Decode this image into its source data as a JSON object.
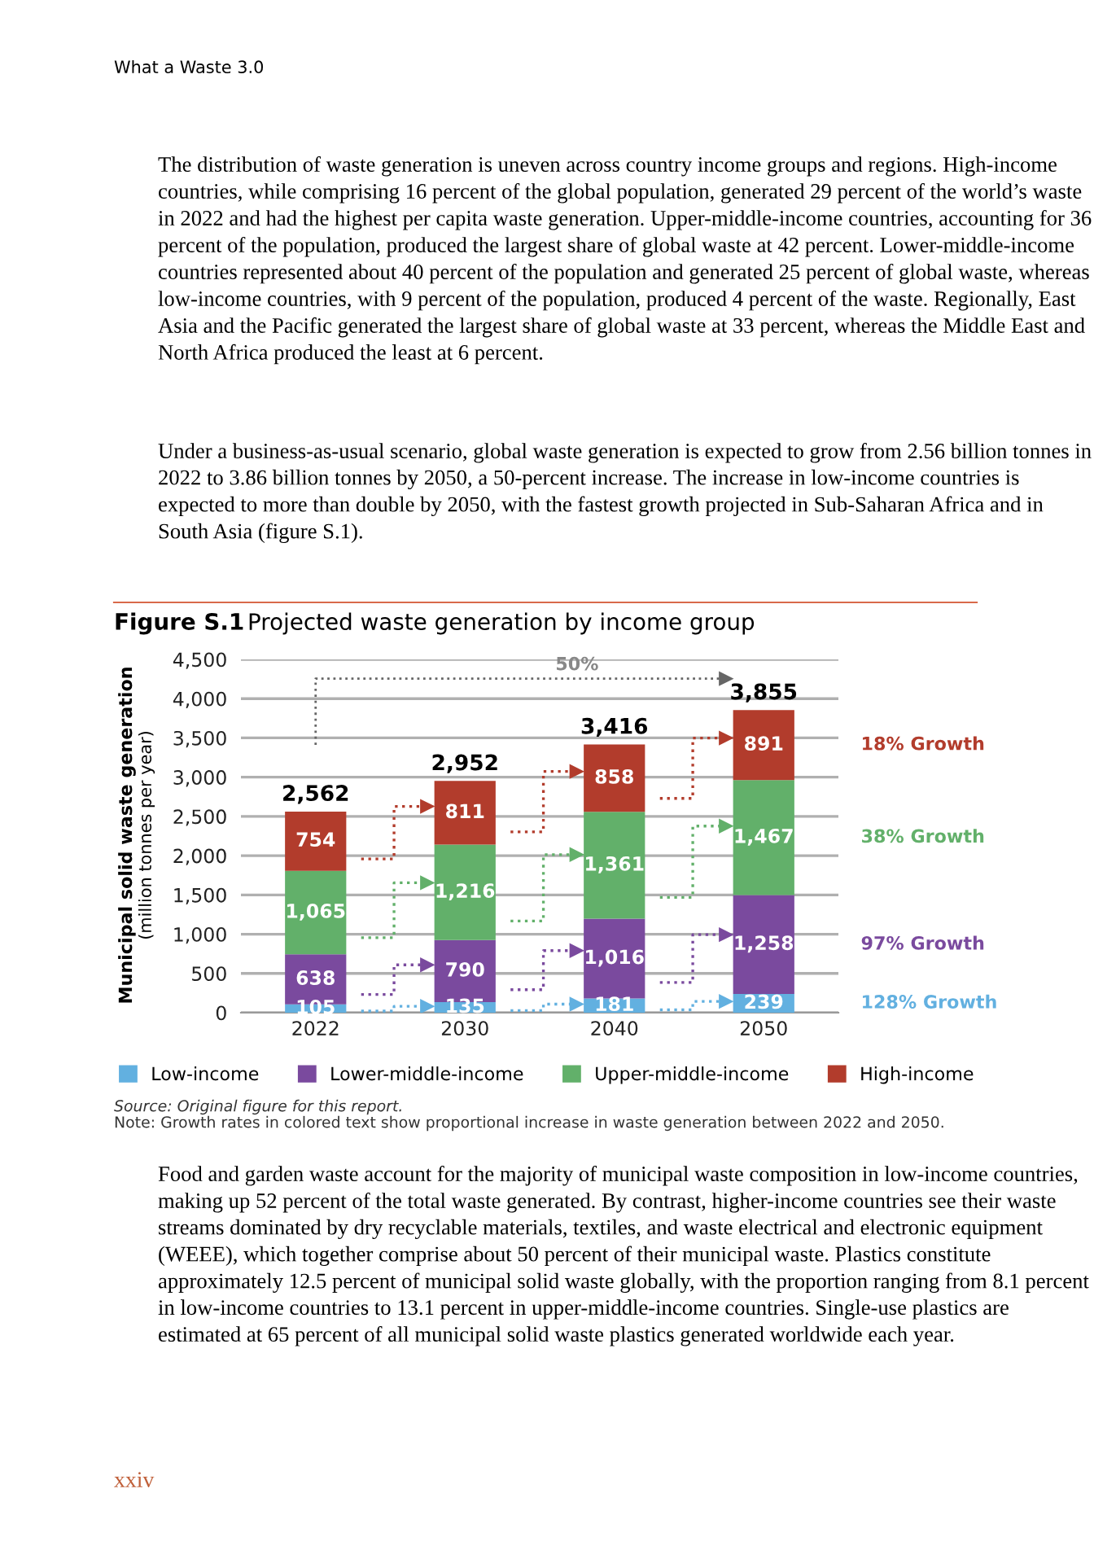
{
  "chart_data": {
    "type": "bar",
    "stacked": true,
    "title": "Figure S.1",
    "subtitle": "Projected waste generation by income group",
    "ylabel": "Municipal solid waste generation\n(million tonnes per year)",
    "categories": [
      "2022",
      "2030",
      "2040",
      "2050"
    ],
    "series": [
      {
        "name": "Low-income",
        "color": "#62b0e0",
        "values": [
          105,
          135,
          181,
          239
        ],
        "value_labels": [
          "105",
          "135",
          "181",
          "239"
        ]
      },
      {
        "name": "Lower-middle-income",
        "color": "#7a4a9e",
        "values": [
          638,
          790,
          1016,
          1258
        ],
        "value_labels": [
          "638",
          "790",
          "1,016",
          "1,258"
        ]
      },
      {
        "name": "Upper-middle-income",
        "color": "#62b06a",
        "values": [
          1065,
          1216,
          1361,
          1467
        ],
        "value_labels": [
          "1,065",
          "1,216",
          "1,361",
          "1,467"
        ]
      },
      {
        "name": "High-income",
        "color": "#b23c2c",
        "values": [
          754,
          811,
          858,
          891
        ],
        "value_labels": [
          "754",
          "811",
          "858",
          "891"
        ]
      }
    ],
    "totals": [
      "2,562",
      "2,952",
      "3,416",
      "3,855"
    ],
    "ylim": [
      0,
      4500
    ],
    "yticks": [
      {
        "value": 0,
        "label": "0"
      },
      {
        "value": 500,
        "label": "500"
      },
      {
        "value": 1000,
        "label": "1,000"
      },
      {
        "value": 1500,
        "label": "1,500"
      },
      {
        "value": 2000,
        "label": "2,000"
      },
      {
        "value": 2500,
        "label": "2,500"
      },
      {
        "value": 3000,
        "label": "3,000"
      },
      {
        "value": 3500,
        "label": "3,500"
      },
      {
        "value": 4000,
        "label": "4,000"
      },
      {
        "value": 4500,
        "label": "4,500"
      }
    ],
    "grid": "y",
    "legend": "bottom",
    "annotations": [
      "What a Waste 3.0",
      "The distribution of waste generation is uneven across country income groups and regions. High-income countries, while comprising 16 percent of the global population, generated 29 percent of the world’s waste in 2022 and had the highest per capita waste generation. Upper-middle-income countries, accounting for 36 percent of the population, produced the largest share of global waste at 42 percent. Lower-middle-income countries represented about 40 percent of the population and generated 25 percent of global waste, whereas low-income countries, with 9 percent of the population, produced 4 percent of the waste. Regionally, East Asia and the Pacific generated the largest share of global waste at 33 percent, whereas the Middle East and North Africa produced the least at 6 percent.",
      "Under a business-as-usual scenario, global waste generation is expected to grow from 2.56 billion tonnes in 2022 to 3.86 billion tonnes by 2050, a 50-percent increase. The increase in low-income countries is expected to more than double by 2050, with the fastest growth projected in Sub-Saharan Africa and in South Asia (figure S.1).",
      "50%",
      "128% Growth",
      "97% Growth",
      "38% Growth",
      "18% Growth",
      "Source: Original figure for this report.",
      "Note: Growth rates in colored text show proportional increase in waste generation between 2022 and 2050.",
      "Food and garden waste account for the majority of municipal waste composition in low-income countries, making up 52 percent of the total waste generated. By contrast, higher-income countries see their waste streams dominated by dry recyclable materials, textiles, and waste electrical and electronic equipment (WEEE), which together comprise about 50 percent of their municipal waste. Plastics constitute approximately 12.5 percent of municipal solid waste globally, with the proportion ranging from 8.1 percent in low-income countries to 13.1 percent in upper-middle-income countries. Single-use plastics are estimated at 65 percent of all municipal solid waste plastics generated worldwide each year.",
      "xxiv"
    ]
  }
}
